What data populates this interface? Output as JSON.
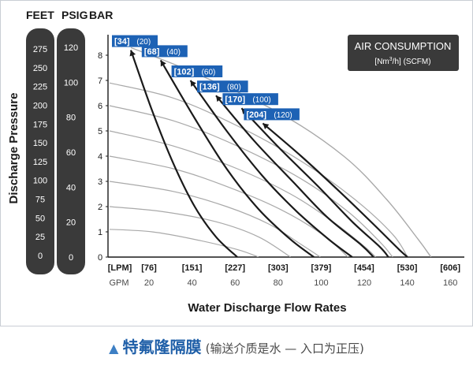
{
  "chart_data": {
    "type": "line",
    "left_axes": {
      "headers": [
        "FEET",
        "PSIG",
        "BAR"
      ],
      "ylabel": "Discharge Pressure",
      "feet_ticks": [
        "275",
        "250",
        "225",
        "200",
        "175",
        "150",
        "125",
        "100",
        "75",
        "50",
        "25",
        "0"
      ],
      "psig_ticks": [
        "120",
        "100",
        "80",
        "60",
        "40",
        "20",
        "0"
      ],
      "bar_ticks": [
        "8",
        "7",
        "6",
        "5",
        "4",
        "3",
        "2",
        "1",
        "0"
      ]
    },
    "xlabel": "Water Discharge Flow Rates",
    "x_ticks_lpm": [
      "[LPM]",
      "[76]",
      "[151]",
      "[227]",
      "[303]",
      "[379]",
      "[454]",
      "[530]",
      "[606]"
    ],
    "x_ticks_gpm": [
      "GPM",
      "20",
      "40",
      "60",
      "80",
      "100",
      "120",
      "140",
      "160"
    ],
    "xlim_gpm": [
      0,
      160
    ],
    "ylim_bar": [
      0,
      8.5
    ],
    "legend": {
      "title": "AIR CONSUMPTION",
      "unit_prefix": "[Nm",
      "unit_sup": "3",
      "unit_suffix": "/h] (SCFM)"
    },
    "air_curves": [
      {
        "label_a": "[34]",
        "label_b": "(20)",
        "points": [
          [
            10,
            8.2
          ],
          [
            20,
            5.8
          ],
          [
            30,
            3.7
          ],
          [
            40,
            2.0
          ],
          [
            50,
            0.8
          ],
          [
            60,
            0
          ]
        ]
      },
      {
        "label_a": "[68]",
        "label_b": "(40)",
        "points": [
          [
            24,
            7.8
          ],
          [
            40,
            5.5
          ],
          [
            55,
            3.5
          ],
          [
            70,
            1.9
          ],
          [
            85,
            0.7
          ],
          [
            96,
            0
          ]
        ]
      },
      {
        "label_a": "[102]",
        "label_b": "(60)",
        "points": [
          [
            38,
            7.0
          ],
          [
            55,
            5.0
          ],
          [
            72,
            3.2
          ],
          [
            88,
            1.8
          ],
          [
            103,
            0.7
          ],
          [
            114,
            0
          ]
        ]
      },
      {
        "label_a": "[136]",
        "label_b": "(80)",
        "points": [
          [
            50,
            6.4
          ],
          [
            68,
            4.6
          ],
          [
            86,
            3.0
          ],
          [
            102,
            1.6
          ],
          [
            118,
            0.5
          ],
          [
            124,
            0
          ]
        ]
      },
      {
        "label_a": "[170]",
        "label_b": "(100)",
        "points": [
          [
            62,
            5.9
          ],
          [
            80,
            4.3
          ],
          [
            98,
            2.8
          ],
          [
            114,
            1.4
          ],
          [
            127,
            0.4
          ],
          [
            131,
            0
          ]
        ]
      },
      {
        "label_a": "[204]",
        "label_b": "(120)",
        "points": [
          [
            72,
            5.3
          ],
          [
            90,
            4.0
          ],
          [
            108,
            2.6
          ],
          [
            124,
            1.3
          ],
          [
            136,
            0.3
          ],
          [
            140,
            0
          ]
        ]
      }
    ],
    "envelope": {
      "points": [
        [
          10,
          8.3
        ],
        [
          40,
          7.3
        ],
        [
          80,
          5.7
        ],
        [
          110,
          4.0
        ],
        [
          130,
          2.3
        ],
        [
          145,
          0.7
        ],
        [
          151,
          0
        ]
      ]
    },
    "efficiency_curves": [
      {
        "points": [
          [
            0,
            6.9
          ],
          [
            30,
            6.3
          ],
          [
            60,
            5.2
          ],
          [
            90,
            3.8
          ],
          [
            115,
            2.3
          ],
          [
            133,
            0.9
          ],
          [
            140,
            0
          ]
        ]
      },
      {
        "points": [
          [
            0,
            6.0
          ],
          [
            30,
            5.4
          ],
          [
            60,
            4.4
          ],
          [
            90,
            3.1
          ],
          [
            112,
            1.8
          ],
          [
            127,
            0.6
          ],
          [
            133,
            0
          ]
        ]
      },
      {
        "points": [
          [
            0,
            5.0
          ],
          [
            30,
            4.4
          ],
          [
            60,
            3.5
          ],
          [
            85,
            2.5
          ],
          [
            105,
            1.4
          ],
          [
            120,
            0.4
          ],
          [
            125,
            0
          ]
        ]
      },
      {
        "points": [
          [
            0,
            4.0
          ],
          [
            30,
            3.5
          ],
          [
            55,
            2.8
          ],
          [
            80,
            1.9
          ],
          [
            100,
            0.9
          ],
          [
            112,
            0
          ]
        ]
      },
      {
        "points": [
          [
            0,
            3.0
          ],
          [
            30,
            2.6
          ],
          [
            55,
            2.0
          ],
          [
            75,
            1.3
          ],
          [
            90,
            0.5
          ],
          [
            99,
            0
          ]
        ]
      },
      {
        "points": [
          [
            0,
            2.0
          ],
          [
            25,
            1.8
          ],
          [
            50,
            1.4
          ],
          [
            70,
            0.8
          ],
          [
            85,
            0
          ]
        ]
      },
      {
        "points": [
          [
            0,
            1.1
          ],
          [
            20,
            1.0
          ],
          [
            40,
            0.7
          ],
          [
            60,
            0.3
          ],
          [
            70,
            0
          ]
        ]
      }
    ]
  },
  "caption": {
    "title": "特氟隆隔膜",
    "subtitle": "(输送介质是水 — 入口为正压)"
  },
  "colors": {
    "curve": "#1a1a1a",
    "grey_curve": "#a9a9a9",
    "label_bg": "#1d62b5",
    "bar_fill": "#3a3a3a",
    "text": "#1a1a1a",
    "caption_blue": "#1f5fa8"
  }
}
